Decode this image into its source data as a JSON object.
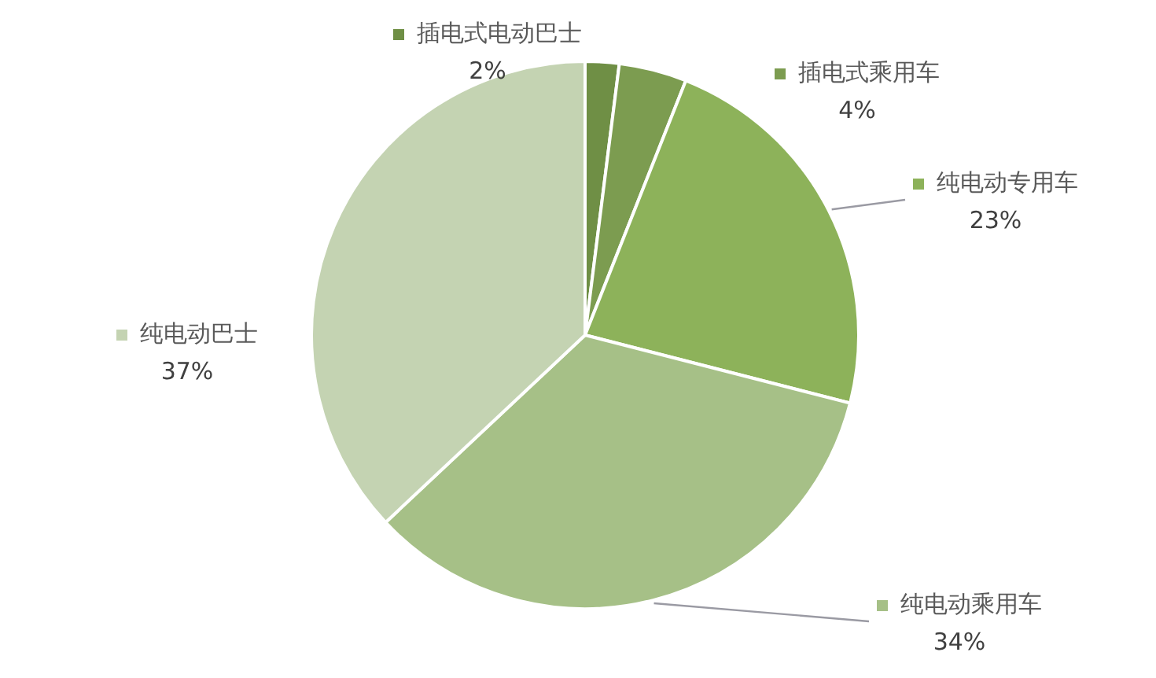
{
  "chart_data": {
    "type": "pie",
    "categories": [
      "插电式电动巴士",
      "插电式乘用车",
      "纯电动专用车",
      "纯电动乘用车",
      "纯电动巴士"
    ],
    "values": [
      2,
      4,
      23,
      34,
      37
    ],
    "value_labels": [
      "2%",
      "4%",
      "23%",
      "34%",
      "37%"
    ],
    "colors": [
      "#6f8f45",
      "#7c9c50",
      "#8db25a",
      "#a6c087",
      "#c4d3b2"
    ],
    "legend": "right"
  }
}
